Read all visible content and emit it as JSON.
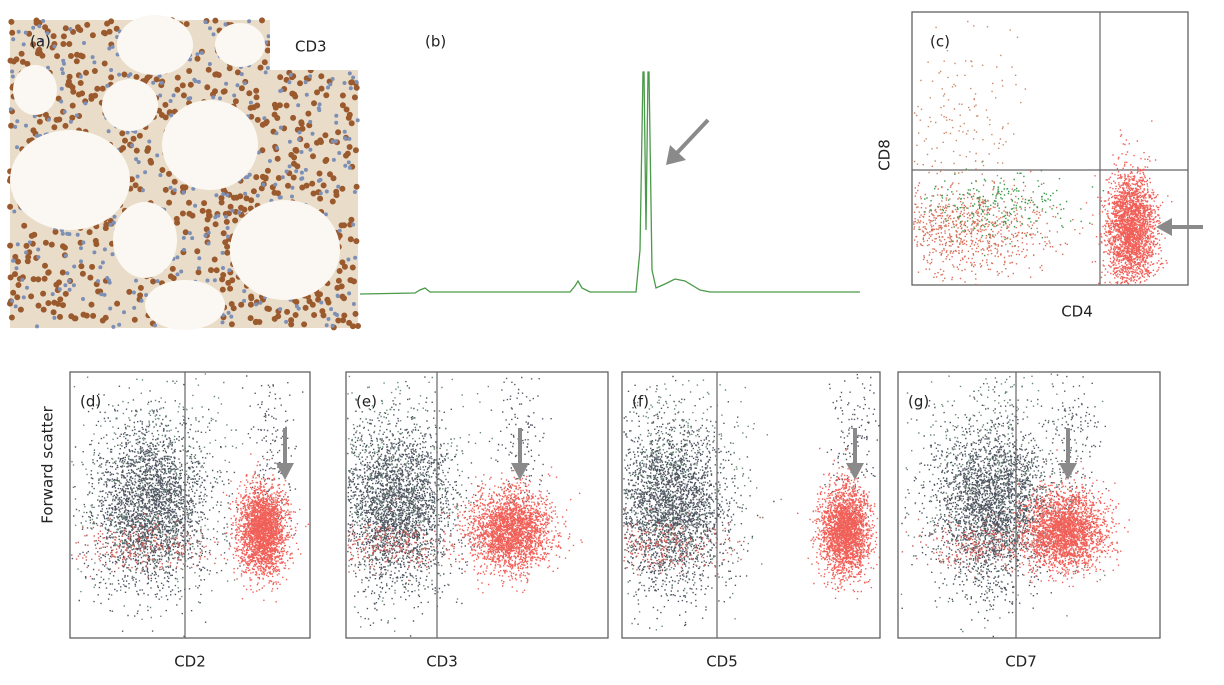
{
  "panels": {
    "a": {
      "label": "(a)",
      "stain": "CD3"
    },
    "b": {
      "label": "(b)"
    },
    "c": {
      "label": "(c)",
      "y_label": "CD8",
      "x_label": "CD4"
    },
    "d": {
      "label": "(d)",
      "x_label": "CD2"
    },
    "e": {
      "label": "(e)",
      "x_label": "CD3"
    },
    "f": {
      "label": "(f)",
      "x_label": "CD5"
    },
    "g": {
      "label": "(g)",
      "x_label": "CD7"
    }
  },
  "y_label_bottom": "Forward scatter"
}
